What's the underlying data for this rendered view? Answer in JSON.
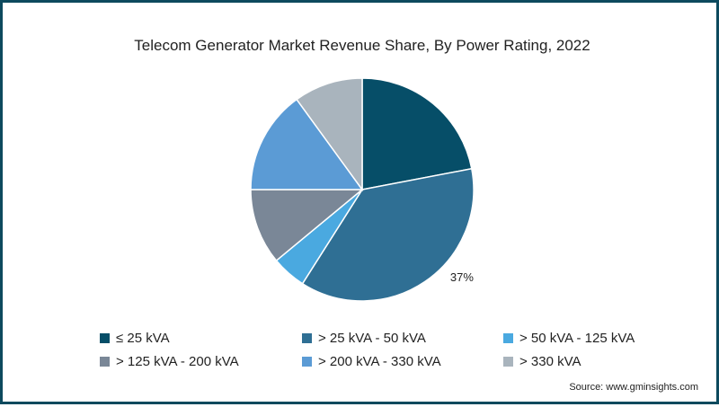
{
  "chart_data": {
    "type": "pie",
    "title": "Telecom Generator Market Revenue Share, By Power Rating, 2022",
    "categories": [
      "≤ 25 kVA",
      "> 25 kVA - 50 kVA",
      "> 50 kVA - 125 kVA",
      "> 125 kVA - 200 kVA",
      "> 200 kVA - 330 kVA",
      "> 330 kVA"
    ],
    "values": [
      22,
      37,
      5,
      11,
      15,
      10
    ],
    "colors": [
      "#064e68",
      "#2f6f94",
      "#4aa9e0",
      "#7a8797",
      "#5b9bd5",
      "#a9b4bd"
    ],
    "data_labels": [
      "",
      "37%",
      "",
      "",
      "",
      ""
    ],
    "legend_position": "bottom"
  },
  "source": "Source: www.gminsights.com"
}
